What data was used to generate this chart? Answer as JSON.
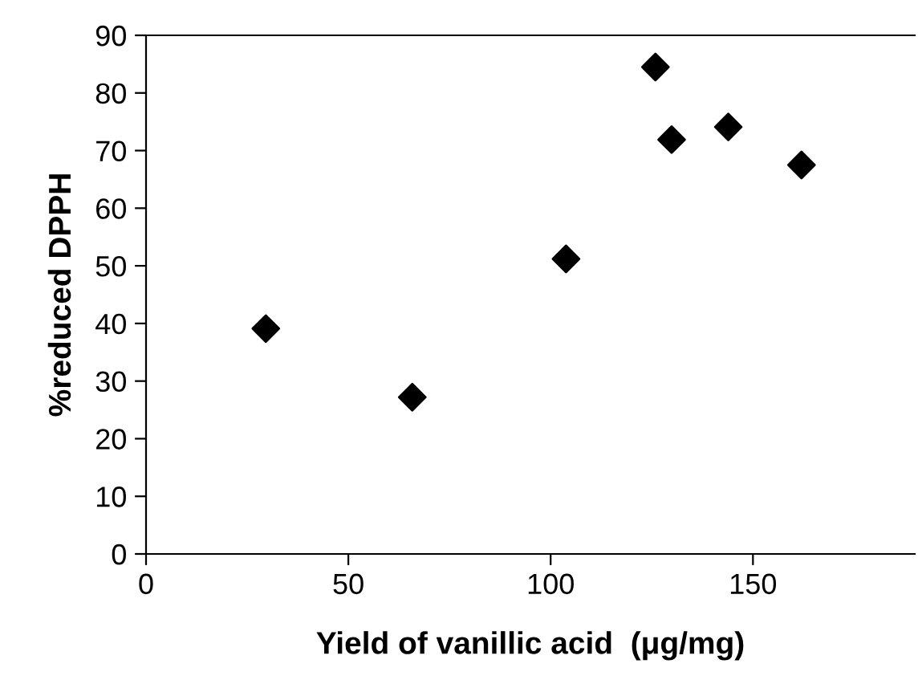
{
  "chart_data": {
    "type": "scatter",
    "xlabel": "Yield of vanillic acid  (μg/mg)",
    "ylabel": "%reduced DPPH",
    "x": [
      29.6,
      65.8,
      103.8,
      125.9,
      129.9,
      143.9,
      162
    ],
    "series": [
      {
        "color": "#000000",
        "values": [
          39.1,
          27.2,
          51.2,
          84.5,
          71.9,
          74.1,
          67.5
        ]
      }
    ],
    "xlim": [
      0,
      190
    ],
    "xticks": [
      0,
      50,
      100,
      150
    ],
    "ylim": [
      0,
      90
    ],
    "yticks": [
      0,
      10,
      20,
      30,
      40,
      50,
      60,
      70,
      80,
      90
    ],
    "marker": "diamond",
    "grid": false,
    "legend": false
  }
}
